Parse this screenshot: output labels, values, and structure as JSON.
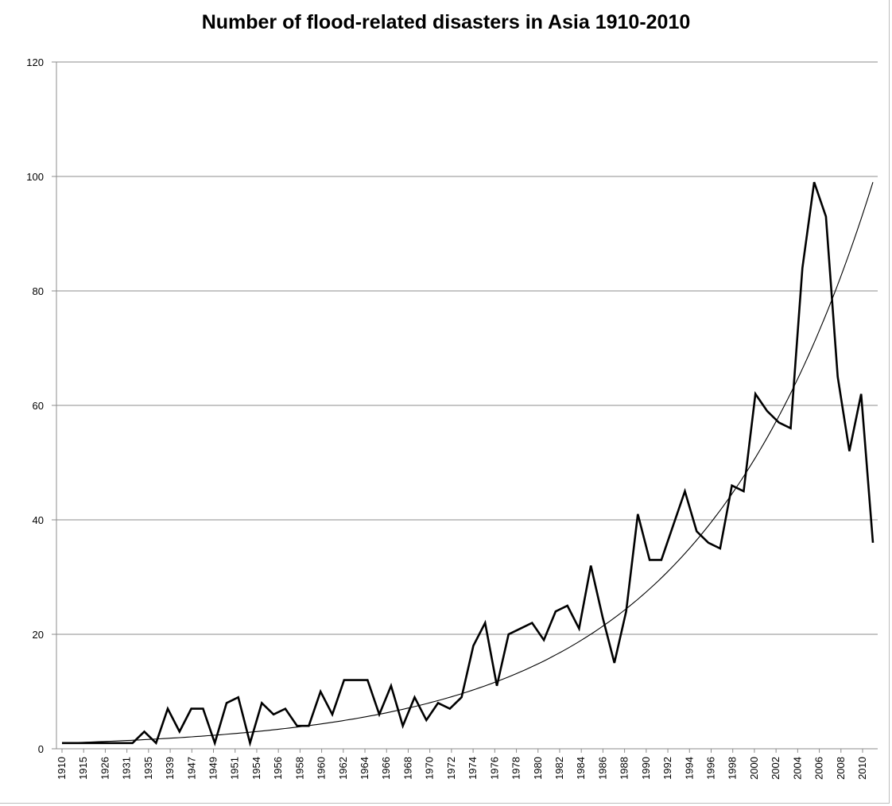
{
  "chart_data": {
    "type": "line",
    "title": "Number of flood-related disasters in Asia 1910-2010",
    "xlabel": "",
    "ylabel": "",
    "ylim": [
      0,
      120
    ],
    "yticks": [
      0,
      20,
      40,
      60,
      80,
      100,
      120
    ],
    "grid": true,
    "legend": "none",
    "x_tick_labels": [
      "1910",
      "1915",
      "1926",
      "1931",
      "1935",
      "1939",
      "1947",
      "1949",
      "1951",
      "1954",
      "1956",
      "1958",
      "1960",
      "1962",
      "1964",
      "1966",
      "1968",
      "1970",
      "1972",
      "1974",
      "1976",
      "1978",
      "1980",
      "1982",
      "1984",
      "1986",
      "1988",
      "1990",
      "1992",
      "1994",
      "1996",
      "1998",
      "2000",
      "2002",
      "2004",
      "2006",
      "2008",
      "2010"
    ],
    "series": [
      {
        "style": "data",
        "values": [
          1,
          1,
          1,
          1,
          1,
          1,
          1,
          3,
          1,
          7,
          3,
          7,
          7,
          1,
          8,
          9,
          1,
          8,
          6,
          7,
          4,
          4,
          10,
          6,
          12,
          12,
          12,
          6,
          11,
          4,
          9,
          5,
          8,
          7,
          9,
          18,
          22,
          11,
          20,
          21,
          22,
          19,
          24,
          25,
          21,
          32,
          23,
          15,
          24,
          41,
          33,
          33,
          39,
          45,
          38,
          36,
          35,
          46,
          45,
          62,
          59,
          57,
          56,
          84,
          99,
          93,
          65,
          52,
          62,
          36
        ]
      },
      {
        "style": "trend",
        "type": "exponential",
        "start": 1.0,
        "end": 99
      }
    ],
    "colors": {
      "line": "#000000",
      "grid": "#8c8c8c",
      "axis": "#8c8c8c"
    }
  }
}
